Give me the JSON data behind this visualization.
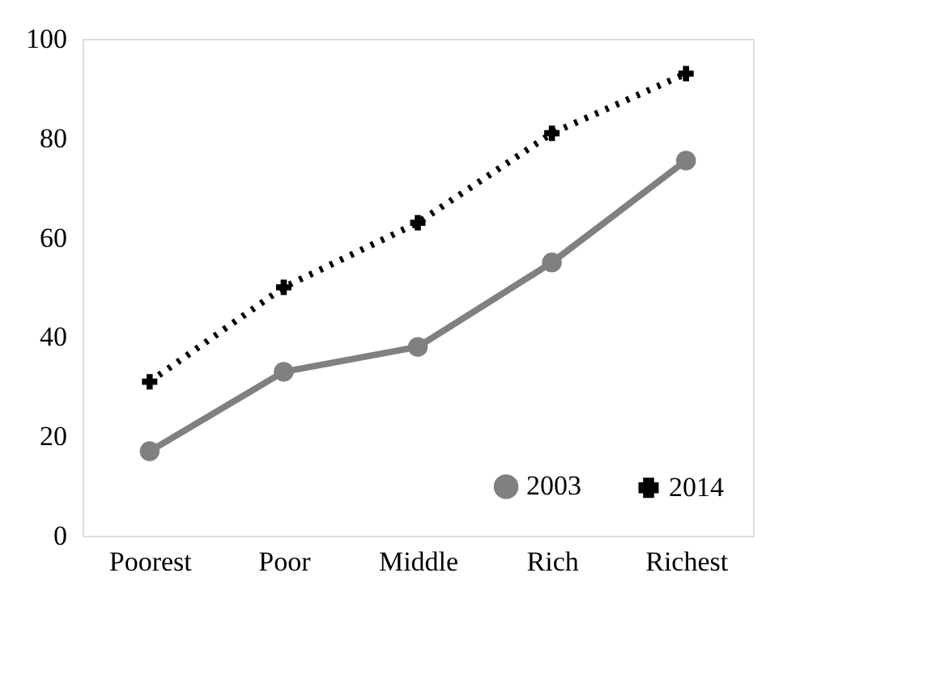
{
  "chart_data": {
    "type": "line",
    "categories": [
      "Poorest",
      "Poor",
      "Middle",
      "Rich",
      "Richest"
    ],
    "series": [
      {
        "name": "2003",
        "color": "#808080",
        "values": [
          17,
          33,
          38,
          55,
          75.5
        ],
        "marker": "circle",
        "line_style": "solid"
      },
      {
        "name": "2014",
        "color": "#000000",
        "values": [
          31,
          50,
          63,
          81,
          93
        ],
        "marker": "cross",
        "line_style": "dotted"
      }
    ],
    "ylim": [
      0,
      100
    ],
    "yticks": [
      0,
      20,
      40,
      60,
      80,
      100
    ],
    "grid": false,
    "legend": "bottom right"
  }
}
